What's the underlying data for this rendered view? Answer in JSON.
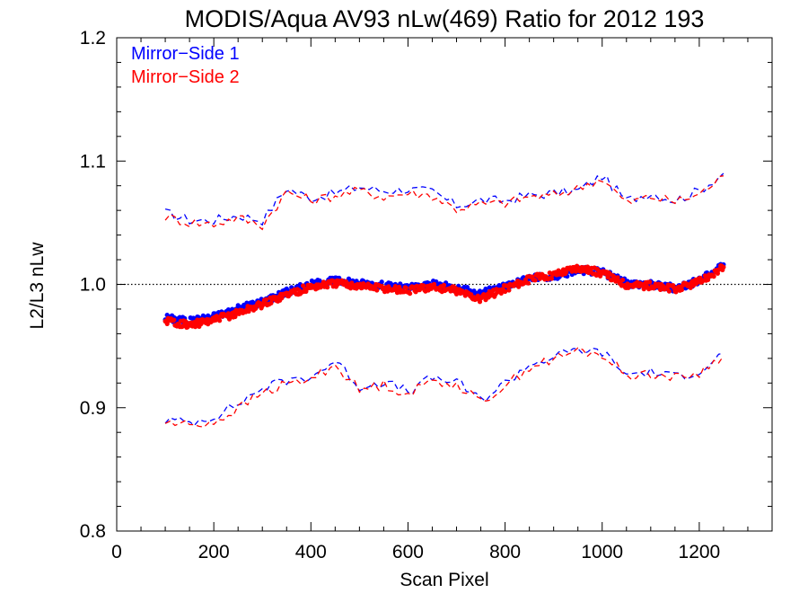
{
  "chart_data": {
    "type": "line",
    "title": "MODIS/Aqua AV93 nLw(469) Ratio for 2012 193",
    "xlabel": "Scan Pixel",
    "ylabel": "L2/L3 nLw",
    "xlim": [
      0,
      1350
    ],
    "ylim": [
      0.8,
      1.2
    ],
    "xticks": [
      0,
      200,
      400,
      600,
      800,
      1000,
      1200
    ],
    "xtick_labels": [
      "0",
      "200",
      "400",
      "600",
      "800",
      "1000",
      "1200"
    ],
    "yticks": [
      0.8,
      0.9,
      1.0,
      1.1,
      1.2
    ],
    "ytick_labels": [
      "0.8",
      "0.9",
      "1.0",
      "1.1",
      "1.2"
    ],
    "reference_line": 1.0,
    "legend_position": "top-left",
    "grid": false,
    "series": [
      {
        "name": "Mirror−Side 1",
        "color": "#0000ff",
        "x": [
          100,
          150,
          200,
          250,
          300,
          350,
          400,
          450,
          500,
          550,
          600,
          650,
          700,
          750,
          800,
          850,
          900,
          950,
          1000,
          1050,
          1100,
          1150,
          1200,
          1250
        ],
        "mean": [
          0.973,
          0.97,
          0.974,
          0.98,
          0.986,
          0.994,
          1.0,
          1.003,
          1.001,
          0.999,
          0.997,
          1.0,
          0.997,
          0.992,
          0.999,
          1.005,
          1.006,
          1.012,
          1.01,
          1.001,
          1.0,
          0.997,
          1.003,
          1.016
        ],
        "upper": [
          1.058,
          1.052,
          1.052,
          1.056,
          1.052,
          1.078,
          1.07,
          1.074,
          1.079,
          1.076,
          1.077,
          1.075,
          1.064,
          1.068,
          1.068,
          1.072,
          1.074,
          1.076,
          1.088,
          1.068,
          1.074,
          1.068,
          1.076,
          1.09
        ],
        "lower": [
          0.89,
          0.888,
          0.893,
          0.903,
          0.916,
          0.922,
          0.925,
          0.938,
          0.917,
          0.921,
          0.913,
          0.924,
          0.921,
          0.906,
          0.92,
          0.935,
          0.941,
          0.947,
          0.945,
          0.927,
          0.929,
          0.925,
          0.93,
          0.944
        ]
      },
      {
        "name": "Mirror−Side 2",
        "color": "#ff0000",
        "x": [
          100,
          150,
          200,
          250,
          300,
          350,
          400,
          450,
          500,
          550,
          600,
          650,
          700,
          750,
          800,
          850,
          900,
          950,
          1000,
          1050,
          1100,
          1150,
          1200,
          1250
        ],
        "mean": [
          0.971,
          0.967,
          0.971,
          0.977,
          0.984,
          0.992,
          0.998,
          1.001,
          0.999,
          0.997,
          0.995,
          0.998,
          0.995,
          0.988,
          0.997,
          1.004,
          1.008,
          1.014,
          1.009,
          1.0,
          0.999,
          0.996,
          1.002,
          1.014
        ],
        "upper": [
          1.055,
          1.05,
          1.049,
          1.054,
          1.048,
          1.075,
          1.068,
          1.072,
          1.076,
          1.071,
          1.074,
          1.072,
          1.061,
          1.065,
          1.066,
          1.071,
          1.072,
          1.078,
          1.086,
          1.066,
          1.071,
          1.067,
          1.073,
          1.088
        ],
        "lower": [
          0.888,
          0.886,
          0.888,
          0.899,
          0.912,
          0.919,
          0.923,
          0.935,
          0.914,
          0.919,
          0.911,
          0.922,
          0.919,
          0.904,
          0.918,
          0.933,
          0.939,
          0.946,
          0.943,
          0.926,
          0.928,
          0.924,
          0.928,
          0.942
        ]
      }
    ]
  }
}
